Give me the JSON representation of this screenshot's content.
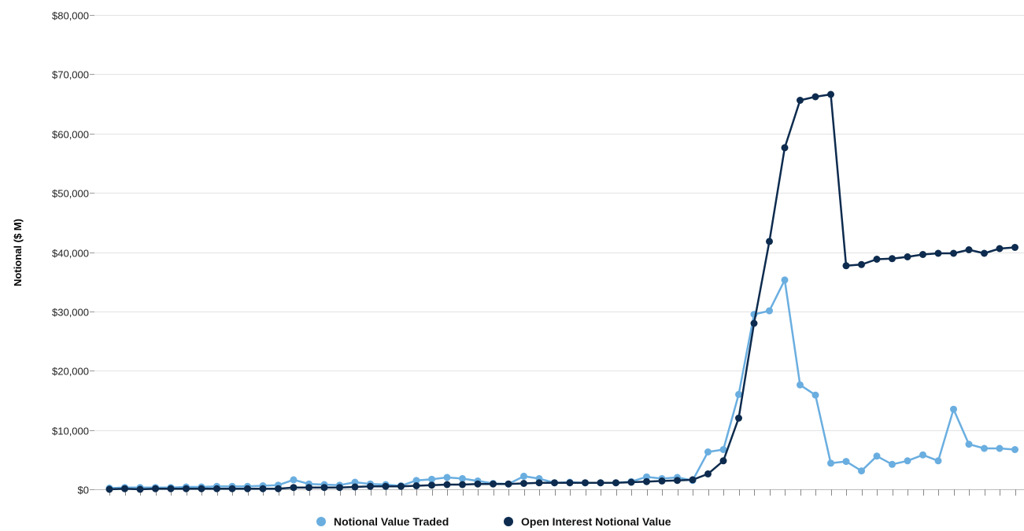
{
  "chart_data": {
    "type": "line",
    "ylabel": "Notional ($ M)",
    "ylim": [
      0,
      80000
    ],
    "yticks": [
      0,
      10000,
      20000,
      30000,
      40000,
      50000,
      60000,
      70000,
      80000
    ],
    "ytick_labels": [
      "$0",
      "$10,000",
      "$20,000",
      "$30,000",
      "$40,000",
      "$50,000",
      "$60,000",
      "$70,000",
      "$80,000"
    ],
    "grid": true,
    "legend_position": "bottom",
    "series": [
      {
        "name": "Notional Value Traded",
        "color": "#6aaee0",
        "values": [
          200,
          300,
          300,
          300,
          300,
          400,
          400,
          500,
          500,
          500,
          600,
          700,
          1600,
          900,
          800,
          700,
          1200,
          900,
          800,
          600,
          1500,
          1700,
          2000,
          1800,
          1400,
          1000,
          900,
          2200,
          1800,
          1100,
          1200,
          1100,
          1100,
          1100,
          1300,
          2100,
          1800,
          2000,
          1500,
          6300,
          6700,
          16000,
          29500,
          30100,
          35300,
          17600,
          15900,
          4400,
          4700,
          3100,
          5600,
          4200,
          4800,
          5800,
          4800,
          13500,
          7600,
          6900,
          6900,
          6700
        ]
      },
      {
        "name": "Open Interest Notional Value",
        "color": "#0d2b4e",
        "values": [
          0,
          100,
          0,
          100,
          100,
          100,
          100,
          100,
          100,
          100,
          100,
          100,
          300,
          300,
          300,
          300,
          400,
          500,
          500,
          500,
          600,
          700,
          800,
          800,
          900,
          900,
          900,
          1000,
          1100,
          1100,
          1100,
          1100,
          1100,
          1100,
          1200,
          1300,
          1400,
          1500,
          1600,
          2600,
          4800,
          12000,
          28000,
          41800,
          57600,
          65600,
          66200,
          66600,
          37700,
          37900,
          38800,
          38900,
          39200,
          39600,
          39800,
          39800,
          40400,
          39800,
          40600,
          40800
        ]
      }
    ]
  }
}
